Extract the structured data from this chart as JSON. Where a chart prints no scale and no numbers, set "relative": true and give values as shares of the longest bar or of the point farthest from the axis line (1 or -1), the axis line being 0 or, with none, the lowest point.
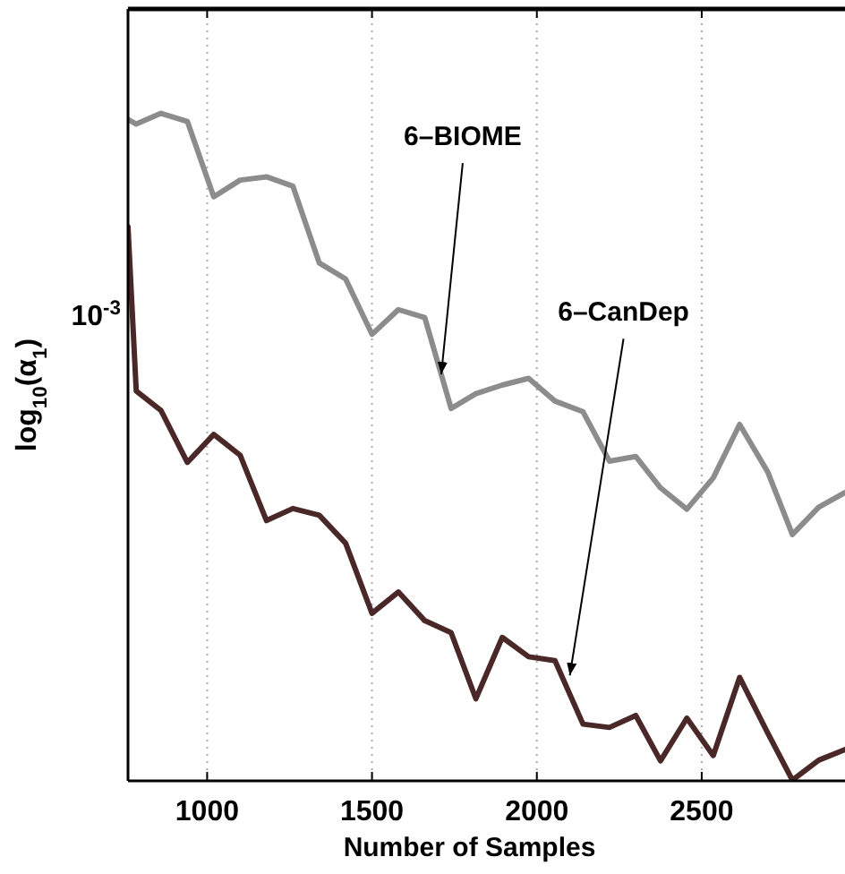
{
  "chart_data": {
    "type": "line",
    "xlabel": "Number of Samples",
    "ylabel": "log$_{10}$(α$_{1}$)",
    "relative": true,
    "x": [
      760,
      785,
      860,
      940,
      1020,
      1100,
      1180,
      1260,
      1340,
      1420,
      1500,
      1580,
      1660,
      1740,
      1815,
      1895,
      1975,
      2055,
      2140,
      2220,
      2300,
      2375,
      2455,
      2535,
      2615,
      2700,
      2775,
      2855,
      2935
    ],
    "series": [
      {
        "color": "#8c8c8c",
        "values": [
          0.991,
          0.984,
          1,
          0.988,
          0.875,
          0.9,
          0.905,
          0.891,
          0.776,
          0.752,
          0.669,
          0.706,
          0.694,
          0.558,
          0.58,
          0.593,
          0.603,
          0.569,
          0.553,
          0.479,
          0.486,
          0.439,
          0.407,
          0.454,
          0.534,
          0.463,
          0.369,
          0.41,
          0.432
        ]
      },
      {
        "color": "#4a2828",
        "values": [
          0.83,
          0.584,
          0.555,
          0.477,
          0.519,
          0.488,
          0.39,
          0.408,
          0.398,
          0.356,
          0.251,
          0.283,
          0.24,
          0.222,
          0.123,
          0.215,
          0.186,
          0.18,
          0.085,
          0.08,
          0.098,
          0.03,
          0.094,
          0.038,
          0.155,
          0.072,
          0.001,
          0.031,
          0.047
        ]
      }
    ],
    "xlim": [
      760,
      2940
    ],
    "xticks": [
      1000,
      1500,
      2000,
      2500
    ],
    "grid": "x",
    "line_style": "solid",
    "marker": "none",
    "annotations": [
      {
        "text": "6–BIOME",
        "x": 1710,
        "y": 0.609
      },
      {
        "text": "6–CanDep",
        "x": 2100,
        "y": 0.158
      },
      "10$^{-3}$"
    ]
  }
}
